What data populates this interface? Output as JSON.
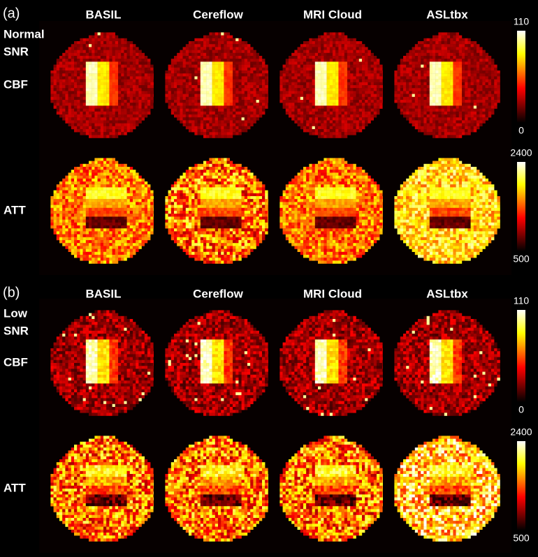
{
  "panels": [
    {
      "label": "(a)",
      "columns": [
        "BASIL",
        "Cereflow",
        "MRI Cloud",
        "ASLtbx"
      ],
      "row_labels": {
        "snr": [
          "Normal",
          "SNR"
        ],
        "cbf": "CBF",
        "att": "ATT"
      },
      "colorbars": {
        "cbf": {
          "max": 110,
          "min": 0
        },
        "att": {
          "max": 2400,
          "min": 500
        }
      }
    },
    {
      "label": "(b)",
      "columns": [
        "BASIL",
        "Cereflow",
        "MRI Cloud",
        "ASLtbx"
      ],
      "row_labels": {
        "snr": [
          "Low",
          "SNR"
        ],
        "cbf": "CBF",
        "att": "ATT"
      },
      "colorbars": {
        "cbf": {
          "max": 110,
          "min": 0
        },
        "att": {
          "max": 2400,
          "min": 500
        }
      }
    }
  ]
}
